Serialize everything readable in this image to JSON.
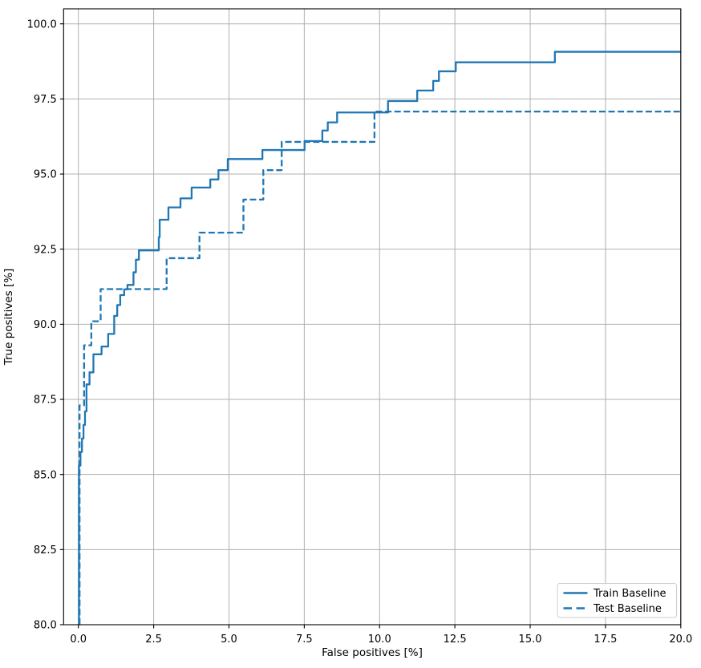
{
  "chart_data": {
    "type": "line",
    "subtype": "step_post",
    "title": "",
    "xlabel": "False positives [%]",
    "ylabel": "True positives [%]",
    "xlim": [
      -0.49,
      20.0
    ],
    "ylim": [
      80.0,
      100.5
    ],
    "xticks": [
      0.0,
      2.5,
      5.0,
      7.5,
      10.0,
      12.5,
      15.0,
      17.5,
      20.0
    ],
    "yticks": [
      80.0,
      82.5,
      85.0,
      87.5,
      90.0,
      92.5,
      95.0,
      97.5,
      100.0
    ],
    "xtick_labels": [
      "0.0",
      "2.5",
      "5.0",
      "7.5",
      "10.0",
      "12.5",
      "15.0",
      "17.5",
      "20.0"
    ],
    "ytick_labels": [
      "80.0",
      "82.5",
      "85.0",
      "87.5",
      "90.0",
      "92.5",
      "95.0",
      "97.5",
      "100.0"
    ],
    "grid": true,
    "grid_color": "#b0b0b0",
    "spine_color": "#000000",
    "line_color": "#1f77b4",
    "legend_position": "lower right",
    "series": [
      {
        "name": "Train Baseline",
        "style": "solid",
        "color": "#1f77b4",
        "x_end": 20.0,
        "steps": [
          [
            0.02,
            80.0
          ],
          [
            0.02,
            85.3
          ],
          [
            0.07,
            85.75
          ],
          [
            0.12,
            86.2
          ],
          [
            0.17,
            86.65
          ],
          [
            0.22,
            87.1
          ],
          [
            0.27,
            88.0
          ],
          [
            0.37,
            88.4
          ],
          [
            0.5,
            89.0
          ],
          [
            0.77,
            89.26
          ],
          [
            0.99,
            89.68
          ],
          [
            1.19,
            90.28
          ],
          [
            1.29,
            90.64
          ],
          [
            1.39,
            90.97
          ],
          [
            1.52,
            91.16
          ],
          [
            1.63,
            91.31
          ],
          [
            1.83,
            91.73
          ],
          [
            1.91,
            92.15
          ],
          [
            2.01,
            92.46
          ],
          [
            2.67,
            92.9
          ],
          [
            2.7,
            93.48
          ],
          [
            2.99,
            93.89
          ],
          [
            3.39,
            94.19
          ],
          [
            3.76,
            94.55
          ],
          [
            4.38,
            94.82
          ],
          [
            4.65,
            95.13
          ],
          [
            4.96,
            95.5
          ],
          [
            6.11,
            95.8
          ],
          [
            7.51,
            96.1
          ],
          [
            8.1,
            96.45
          ],
          [
            8.28,
            96.72
          ],
          [
            8.59,
            97.05
          ],
          [
            10.28,
            97.43
          ],
          [
            11.25,
            97.78
          ],
          [
            11.78,
            98.1
          ],
          [
            11.97,
            98.42
          ],
          [
            12.53,
            98.72
          ],
          [
            15.82,
            99.07
          ]
        ]
      },
      {
        "name": "Test Baseline",
        "style": "dashed",
        "color": "#1f77b4",
        "x_end": 20.0,
        "steps": [
          [
            0.04,
            80.0
          ],
          [
            0.04,
            87.3
          ],
          [
            0.19,
            89.3
          ],
          [
            0.43,
            90.1
          ],
          [
            0.74,
            91.17
          ],
          [
            2.93,
            92.2
          ],
          [
            4.02,
            93.05
          ],
          [
            5.48,
            94.15
          ],
          [
            6.14,
            95.13
          ],
          [
            6.75,
            96.07
          ],
          [
            9.83,
            97.08
          ]
        ]
      }
    ]
  }
}
